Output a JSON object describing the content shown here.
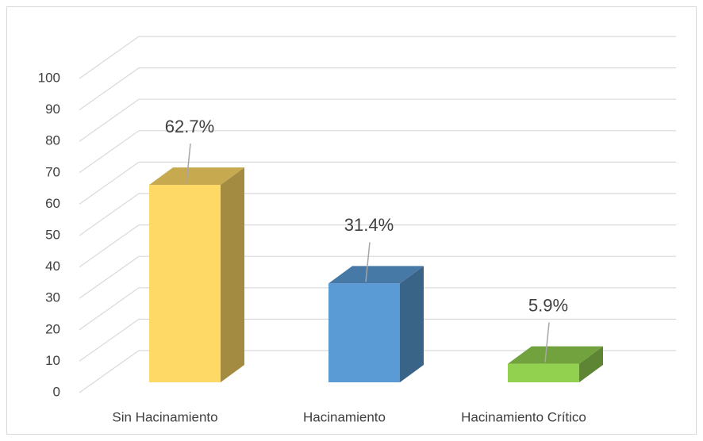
{
  "chart_data": {
    "type": "bar3d",
    "categories": [
      "Sin Hacinamiento",
      "Hacinamiento",
      "Hacinamiento Crítico"
    ],
    "values": [
      62.7,
      31.4,
      5.9
    ],
    "value_labels": [
      "62.7%",
      "31.4%",
      "5.9%"
    ],
    "colors": [
      "#FFD966",
      "#5B9BD5",
      "#92D050"
    ],
    "ylim": [
      0,
      100
    ],
    "yticks": [
      0,
      10,
      20,
      30,
      40,
      50,
      60,
      70,
      80,
      90,
      100
    ],
    "grid": true
  }
}
